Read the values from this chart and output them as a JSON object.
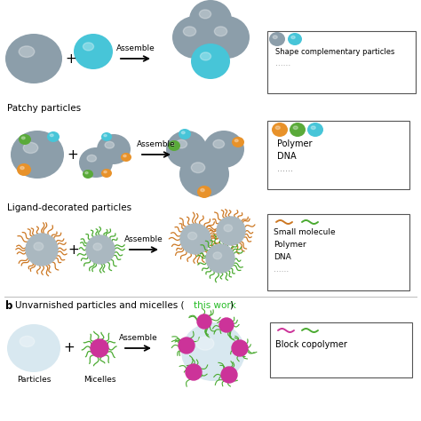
{
  "bg_color": "#ffffff",
  "gray": "#8c9eaa",
  "gray2": "#9aabb5",
  "cyan": "#47c5d8",
  "orange": "#e8922a",
  "green_patch": "#5aaa3a",
  "blue_patch": "#45b8d8",
  "green_ligand": "#4aaa30",
  "orange_ligand": "#cc7722",
  "magenta": "#cc3399",
  "white_sphere": "#d8e8f0",
  "assemble_text": "Assemble",
  "plus_text": "+",
  "legend1_title": "Shape complementary particles",
  "legend1_dots": [
    "#8c9eaa",
    "#47c5d8"
  ],
  "legend2_dots": [
    "#e8922a",
    "#5aaa3a",
    "#45b8d8"
  ],
  "legend2_lines": [
    "Polymer",
    "DNA"
  ],
  "legend3_texts": [
    "Small molecule",
    "Polymer",
    "DNA"
  ],
  "legend4_text": "Block copolymer",
  "particles_label": "Particles",
  "micelles_label": "Micelles",
  "section_b_label_pre": "Unvarnished particles and micelles (",
  "section_b_highlight": "this work",
  "section_b_label_post": ")"
}
